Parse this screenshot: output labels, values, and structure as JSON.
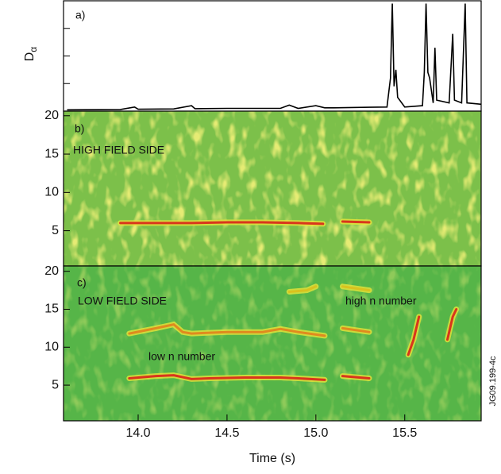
{
  "chart_data": [
    {
      "type": "line",
      "annotations": [
        "a)"
      ],
      "y_label": "D",
      "y_label_subscript": "α",
      "xlim": [
        13.58,
        15.93
      ],
      "ylim": [
        0,
        4
      ],
      "yticks": [
        1,
        2,
        3
      ],
      "show_ytick_labels": false,
      "color": "#000000",
      "x": [
        13.6,
        13.9,
        13.98,
        14.0,
        14.2,
        14.3,
        14.32,
        14.5,
        14.8,
        14.85,
        14.9,
        15.0,
        15.05,
        15.1,
        15.3,
        15.4,
        15.42,
        15.43,
        15.44,
        15.45,
        15.46,
        15.5,
        15.6,
        15.61,
        15.62,
        15.63,
        15.64,
        15.66,
        15.67,
        15.68,
        15.75,
        15.77,
        15.78,
        15.82,
        15.84,
        15.85,
        15.93
      ],
      "values": [
        0.05,
        0.06,
        0.15,
        0.07,
        0.08,
        0.2,
        0.09,
        0.1,
        0.1,
        0.22,
        0.1,
        0.2,
        0.12,
        0.12,
        0.14,
        0.15,
        1.2,
        3.9,
        0.9,
        1.5,
        0.5,
        0.15,
        0.2,
        1.4,
        3.9,
        1.4,
        1.2,
        0.3,
        2.3,
        0.4,
        0.3,
        2.8,
        0.4,
        0.3,
        3.9,
        0.3,
        0.25
      ]
    },
    {
      "type": "spectrogram",
      "annotations": [
        "b)",
        "HIGH FIELD SIDE"
      ],
      "xlim": [
        13.58,
        15.93
      ],
      "ylim": [
        0.4,
        20.6
      ],
      "yticks": [
        5,
        10,
        15,
        20
      ],
      "show_ytick_labels": true,
      "series": [
        {
          "color": "#d9351c",
          "x": [
            13.9,
            14.1,
            14.3,
            14.5,
            14.7,
            14.9,
            15.04,
            15.1,
            15.15,
            15.3
          ],
          "values": [
            6,
            6,
            6,
            6.1,
            6.1,
            6,
            5.9,
            null,
            6.2,
            6.1
          ]
        }
      ]
    },
    {
      "type": "spectrogram",
      "annotations": [
        "c)",
        "LOW FIELD SIDE",
        "high n number",
        "low n number"
      ],
      "code": "JG09.199-4c",
      "xlim": [
        13.58,
        15.93
      ],
      "ylim": [
        0.3,
        20.7
      ],
      "yticks": [
        5,
        10,
        15,
        20
      ],
      "show_ytick_labels": true,
      "xticks": [
        {
          "value": 14,
          "label": "14.0"
        },
        14.5,
        {
          "value": 15,
          "label": "15.0"
        },
        15.5
      ],
      "x_label": "Time (s)",
      "series": [
        {
          "color": "#d9351c",
          "x": [
            13.95,
            14.1,
            14.2,
            14.3,
            14.4,
            14.6,
            14.8,
            14.9,
            15.05,
            15.1,
            15.15,
            15.3
          ],
          "values": [
            5.9,
            6.2,
            6.3,
            5.8,
            5.9,
            6,
            6,
            5.9,
            5.7,
            null,
            6.2,
            5.9
          ]
        },
        {
          "color": "#e08a1e",
          "x": [
            13.95,
            14.1,
            14.2,
            14.25,
            14.3,
            14.5,
            14.7,
            14.8,
            14.9,
            15.05,
            15.1,
            15.15,
            15.3
          ],
          "values": [
            11.8,
            12.5,
            13,
            12,
            11.8,
            12,
            12,
            12.4,
            12,
            11.5,
            null,
            12.5,
            12
          ]
        },
        {
          "color": "#d9c21e",
          "x": [
            14.85,
            14.95,
            15.0,
            15.1,
            15.15,
            15.3
          ],
          "values": [
            17.3,
            17.5,
            18,
            null,
            18,
            17.5
          ]
        },
        {
          "color": "#d9351c",
          "x": [
            15.52,
            15.55,
            15.58,
            15.6,
            15.74,
            15.77,
            15.79
          ],
          "values": [
            9,
            11,
            14,
            null,
            11,
            14,
            15
          ]
        }
      ]
    }
  ]
}
